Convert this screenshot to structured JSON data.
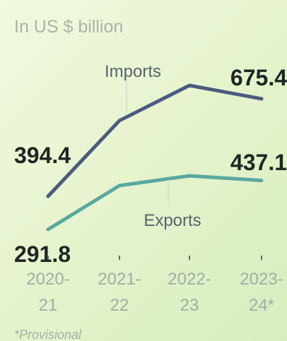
{
  "chart_data": {
    "type": "line",
    "subtitle": "In US $ billion",
    "categories": [
      [
        "2020-",
        "21"
      ],
      [
        "2021-",
        "22"
      ],
      [
        "2022-",
        "23"
      ],
      [
        "2023-",
        "24*"
      ]
    ],
    "series": [
      {
        "name": "Imports",
        "values": [
          394.4,
          612.6,
          714.0,
          675.4
        ],
        "color": "#4b5b7d",
        "start_label": "394.4",
        "end_label": "675.4"
      },
      {
        "name": "Exports",
        "values": [
          291.8,
          422.0,
          451.1,
          437.1
        ],
        "color": "#5aa8a0",
        "start_label": "291.8",
        "end_label": "437.1"
      }
    ],
    "note": "*Provisional",
    "grid": false,
    "legend": "inline"
  }
}
